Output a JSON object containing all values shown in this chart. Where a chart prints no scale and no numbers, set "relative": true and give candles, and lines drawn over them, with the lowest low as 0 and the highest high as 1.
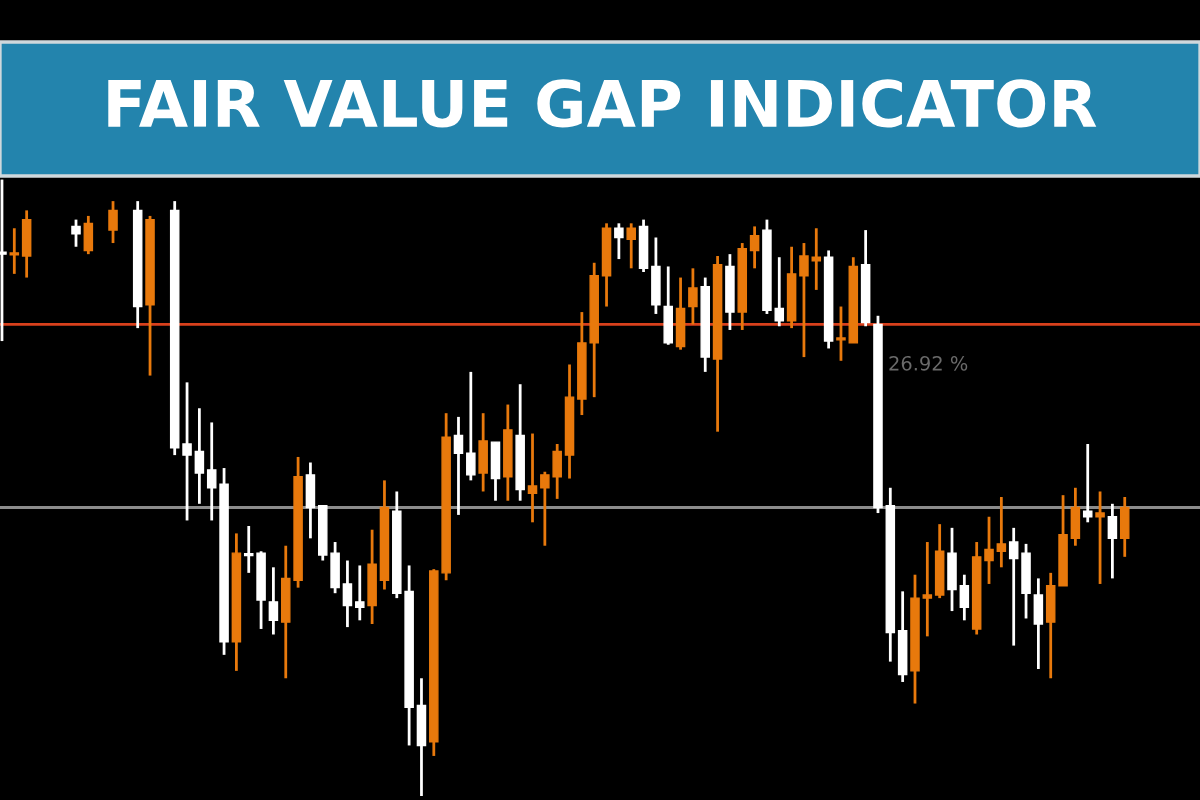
{
  "chart_data": {
    "type": "candlestick",
    "title": "FAIR VALUE GAP INDICATOR",
    "relative": true,
    "grid": false,
    "legend": false,
    "colors": [
      "#ffffff",
      "#e8790c",
      "#e8790c",
      null,
      null,
      null,
      "#ffffff",
      "#e8790c",
      null,
      "#e8790c",
      null,
      "#ffffff",
      "#e8790c",
      null,
      "#ffffff",
      "#ffffff",
      "#ffffff",
      "#ffffff",
      "#ffffff",
      "#e8790c",
      "#ffffff",
      "#ffffff",
      "#ffffff",
      "#e8790c",
      "#e8790c",
      "#ffffff",
      "#ffffff",
      "#ffffff",
      "#ffffff",
      "#ffffff",
      "#e8790c",
      "#e8790c",
      "#ffffff",
      "#ffffff",
      "#ffffff",
      "#e8790c",
      "#e8790c",
      "#ffffff",
      "#ffffff",
      "#e8790c",
      "#ffffff",
      "#e8790c",
      "#ffffff",
      "#e8790c",
      "#e8790c",
      "#e8790c",
      "#e8790c",
      "#e8790c",
      "#e8790c",
      "#e8790c",
      "#ffffff",
      "#e8790c",
      "#ffffff",
      "#ffffff",
      "#ffffff",
      "#e8790c",
      "#e8790c",
      "#ffffff",
      "#e8790c",
      "#ffffff",
      "#e8790c",
      "#e8790c",
      "#ffffff",
      "#ffffff",
      "#e8790c",
      "#e8790c",
      "#e8790c",
      "#ffffff",
      "#e8790c",
      "#e8790c",
      "#ffffff",
      "#ffffff",
      "#ffffff",
      "#ffffff",
      "#e8790c",
      "#e8790c",
      "#e8790c",
      "#ffffff",
      "#ffffff",
      "#e8790c",
      "#e8790c",
      "#e8790c",
      "#ffffff",
      "#ffffff",
      "#ffffff",
      "#e8790c",
      "#e8790c",
      "#e8790c",
      "#ffffff",
      "#e8790c",
      "#ffffff",
      "#e8790c"
    ],
    "categories": [
      null,
      null,
      null,
      null,
      null,
      null,
      null,
      null,
      null,
      null,
      null,
      null,
      null,
      null,
      null,
      null,
      null,
      null,
      null,
      null,
      null,
      null,
      null,
      null,
      null,
      null,
      null,
      null,
      null,
      null,
      null,
      null,
      null,
      null,
      null,
      null,
      null,
      null,
      null,
      null,
      null,
      null,
      null,
      null,
      null,
      null,
      null,
      null,
      null,
      null,
      null,
      null,
      null,
      null,
      null,
      null,
      null,
      null,
      null,
      null,
      null,
      null,
      null,
      null,
      null,
      null,
      null,
      null,
      null,
      null,
      null,
      null,
      null,
      null,
      null,
      null,
      null,
      null,
      null,
      null,
      null,
      null,
      null,
      null,
      null,
      null,
      null,
      null,
      null,
      null,
      null,
      null
    ],
    "ohlc": [
      [
        0.879,
        1.0,
        0.738,
        0.882
      ],
      [
        0.881,
        0.921,
        0.847,
        0.878
      ],
      [
        0.935,
        0.95,
        0.841,
        0.876
      ],
      null,
      null,
      null,
      [
        0.912,
        0.935,
        0.891,
        0.924
      ],
      [
        0.929,
        0.941,
        0.879,
        0.885
      ],
      null,
      [
        0.95,
        0.965,
        0.897,
        0.918
      ],
      null,
      [
        0.794,
        0.965,
        0.759,
        0.95
      ],
      [
        0.935,
        0.941,
        0.682,
        0.797
      ],
      null,
      [
        0.565,
        0.965,
        0.553,
        0.95
      ],
      [
        0.553,
        0.671,
        0.447,
        0.571
      ],
      [
        0.524,
        0.629,
        0.474,
        0.559
      ],
      [
        0.5,
        0.606,
        0.447,
        0.529
      ],
      [
        0.25,
        0.532,
        0.229,
        0.506
      ],
      [
        0.394,
        0.426,
        0.203,
        0.25
      ],
      [
        0.39,
        0.438,
        0.362,
        0.393
      ],
      [
        0.318,
        0.397,
        0.271,
        0.394
      ],
      [
        0.285,
        0.371,
        0.262,
        0.315
      ],
      [
        0.353,
        0.406,
        0.191,
        0.282
      ],
      [
        0.518,
        0.55,
        0.338,
        0.35
      ],
      [
        0.468,
        0.541,
        0.418,
        0.521
      ],
      [
        0.391,
        0.471,
        0.382,
        0.471
      ],
      [
        0.338,
        0.412,
        0.329,
        0.394
      ],
      [
        0.309,
        0.382,
        0.274,
        0.344
      ],
      [
        0.306,
        0.374,
        0.285,
        0.315
      ],
      [
        0.376,
        0.432,
        0.279,
        0.309
      ],
      [
        0.468,
        0.512,
        0.335,
        0.35
      ],
      [
        0.329,
        0.494,
        0.321,
        0.462
      ],
      [
        0.144,
        0.374,
        0.082,
        0.332
      ],
      [
        0.082,
        0.191,
        0.0,
        0.147
      ],
      [
        0.365,
        0.368,
        0.065,
        0.088
      ],
      [
        0.582,
        0.621,
        0.35,
        0.362
      ],
      [
        0.556,
        0.615,
        0.456,
        0.585
      ],
      [
        0.521,
        0.688,
        0.512,
        0.556
      ],
      [
        0.576,
        0.621,
        0.494,
        0.524
      ],
      [
        0.515,
        0.574,
        0.479,
        0.574
      ],
      [
        0.594,
        0.635,
        0.479,
        0.518
      ],
      [
        0.497,
        0.668,
        0.479,
        0.585
      ],
      [
        0.503,
        0.588,
        0.444,
        0.491
      ],
      [
        0.521,
        0.526,
        0.406,
        0.5
      ],
      [
        0.559,
        0.571,
        0.482,
        0.518
      ],
      [
        0.647,
        0.7,
        0.515,
        0.553
      ],
      [
        0.735,
        0.785,
        0.618,
        0.644
      ],
      [
        0.844,
        0.865,
        0.647,
        0.735
      ],
      [
        0.921,
        0.929,
        0.794,
        0.844
      ],
      [
        0.906,
        0.929,
        0.871,
        0.921
      ],
      [
        0.921,
        0.929,
        0.856,
        0.903
      ],
      [
        0.856,
        0.935,
        0.85,
        0.924
      ],
      [
        0.797,
        0.906,
        0.782,
        0.859
      ],
      [
        0.735,
        0.859,
        0.732,
        0.794
      ],
      [
        0.791,
        0.841,
        0.724,
        0.729
      ],
      [
        0.824,
        0.856,
        0.765,
        0.794
      ],
      [
        0.712,
        0.841,
        0.688,
        0.826
      ],
      [
        0.862,
        0.876,
        0.591,
        0.709
      ],
      [
        0.785,
        0.879,
        0.756,
        0.859
      ],
      [
        0.888,
        0.897,
        0.756,
        0.785
      ],
      [
        0.909,
        0.924,
        0.856,
        0.885
      ],
      [
        0.788,
        0.935,
        0.782,
        0.918
      ],
      [
        0.771,
        0.874,
        0.762,
        0.791
      ],
      [
        0.847,
        0.891,
        0.759,
        0.771
      ],
      [
        0.876,
        0.897,
        0.712,
        0.844
      ],
      [
        0.874,
        0.921,
        0.821,
        0.868
      ],
      [
        0.738,
        0.885,
        0.726,
        0.874
      ],
      [
        0.743,
        0.794,
        0.706,
        0.74
      ],
      [
        0.859,
        0.874,
        0.735,
        0.735
      ],
      [
        0.768,
        0.918,
        0.762,
        0.862
      ],
      [
        0.468,
        0.779,
        0.459,
        0.765
      ],
      [
        0.265,
        0.5,
        0.218,
        0.471
      ],
      [
        0.197,
        0.332,
        0.185,
        0.268
      ],
      [
        0.321,
        0.359,
        0.15,
        0.203
      ],
      [
        0.326,
        0.412,
        0.259,
        0.321
      ],
      [
        0.397,
        0.441,
        0.321,
        0.326
      ],
      [
        0.335,
        0.435,
        0.3,
        0.394
      ],
      [
        0.306,
        0.359,
        0.285,
        0.341
      ],
      [
        0.388,
        0.412,
        0.262,
        0.271
      ],
      [
        0.4,
        0.453,
        0.344,
        0.382
      ],
      [
        0.409,
        0.485,
        0.371,
        0.397
      ],
      [
        0.385,
        0.435,
        0.244,
        0.412
      ],
      [
        0.329,
        0.409,
        0.288,
        0.394
      ],
      [
        0.279,
        0.353,
        0.206,
        0.326
      ],
      [
        0.341,
        0.362,
        0.191,
        0.282
      ],
      [
        0.424,
        0.488,
        0.341,
        0.341
      ],
      [
        0.468,
        0.5,
        0.406,
        0.418
      ],
      [
        0.453,
        0.571,
        0.444,
        0.462
      ],
      [
        0.459,
        0.494,
        0.344,
        0.453
      ],
      [
        0.418,
        0.474,
        0.353,
        0.453
      ],
      [
        0.468,
        0.485,
        0.388,
        0.418
      ]
    ],
    "ref_lines": [
      {
        "axis": "y",
        "value": 0.468,
        "color": "#8c8c8c"
      },
      {
        "axis": "y",
        "value": 0.765,
        "color": "#d8401c"
      }
    ],
    "annotations": [
      "26.92 %"
    ]
  }
}
